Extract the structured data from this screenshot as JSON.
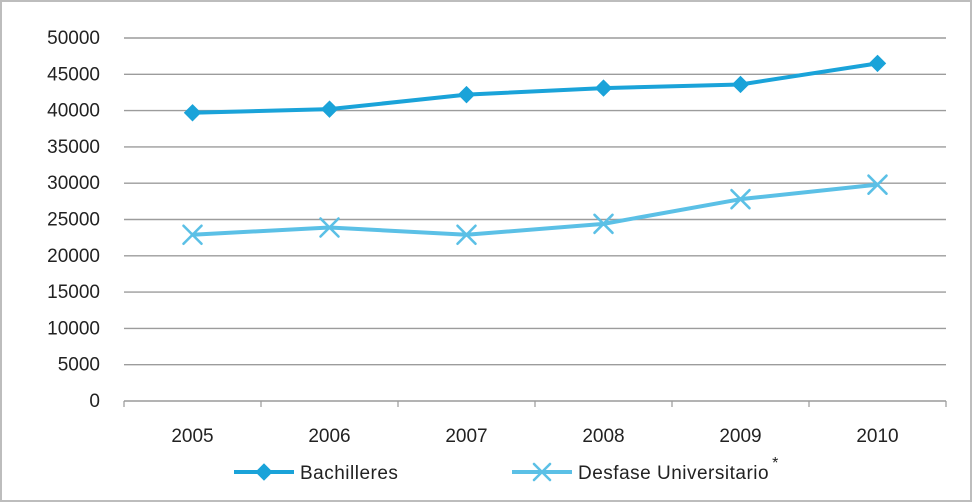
{
  "chart_data": {
    "type": "line",
    "title": "",
    "xlabel": "",
    "ylabel": "",
    "x": [
      "2005",
      "2006",
      "2007",
      "2008",
      "2009",
      "2010"
    ],
    "ylim": [
      0,
      50000
    ],
    "yticks": [
      "0",
      "5000",
      "10000",
      "15000",
      "20000",
      "25000",
      "30000",
      "35000",
      "40000",
      "45000",
      "50000"
    ],
    "grid": true,
    "legend_position": "bottom",
    "series": [
      {
        "name": "Bachilleres",
        "marker": "diamond",
        "color": "#1aa3d9",
        "values": [
          39700,
          40200,
          42200,
          43100,
          43600,
          46500
        ]
      },
      {
        "name": "Desfase Universitario",
        "marker": "x",
        "color": "#5bc0e6",
        "values": [
          22900,
          23900,
          22900,
          24400,
          27800,
          29800
        ]
      }
    ],
    "legend_note": "*"
  }
}
